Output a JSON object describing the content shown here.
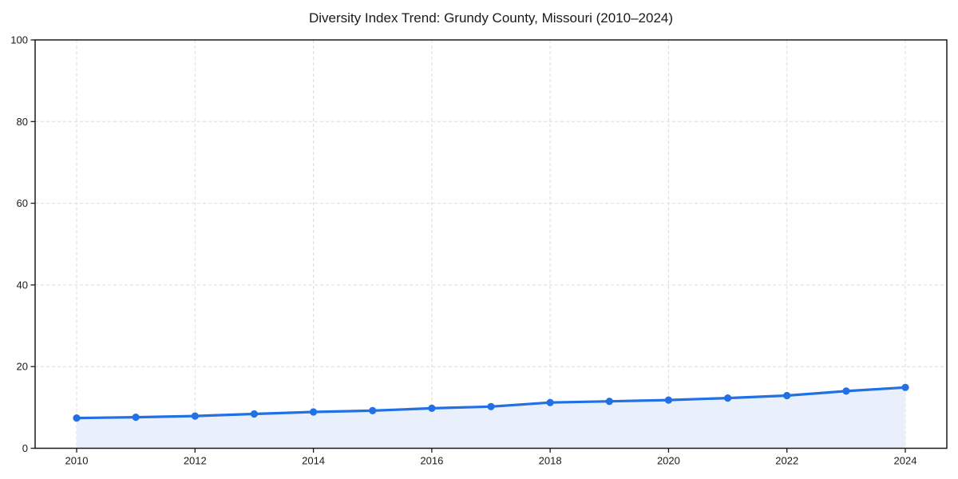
{
  "chart_data": {
    "type": "line",
    "title": "Diversity Index Trend: Grundy County, Missouri (2010–2024)",
    "xlabel": "",
    "ylabel": "",
    "x": [
      2010,
      2011,
      2012,
      2013,
      2014,
      2015,
      2016,
      2017,
      2018,
      2019,
      2020,
      2021,
      2022,
      2023,
      2024
    ],
    "series": [
      {
        "name": "Diversity Index",
        "values": [
          7.4,
          7.6,
          7.9,
          8.4,
          8.9,
          9.2,
          9.8,
          10.2,
          11.2,
          11.5,
          11.8,
          12.3,
          12.9,
          14.0,
          14.9
        ]
      }
    ],
    "ylim": [
      0,
      100
    ],
    "yticks": [
      0,
      20,
      40,
      60,
      80,
      100
    ],
    "xticks_labeled": [
      2010,
      2012,
      2014,
      2016,
      2018,
      2020,
      2022,
      2024
    ],
    "grid": true,
    "grid_style": "dashed",
    "legend_position": "none",
    "marker": "circle",
    "colors": {
      "line": "#2170e4",
      "marker": "#2170e4",
      "area_fill": "#e9effb",
      "grid": "#dcdcdc",
      "axis": "#1a1a1a",
      "text": "#1a1a1a",
      "background": "#ffffff"
    }
  }
}
